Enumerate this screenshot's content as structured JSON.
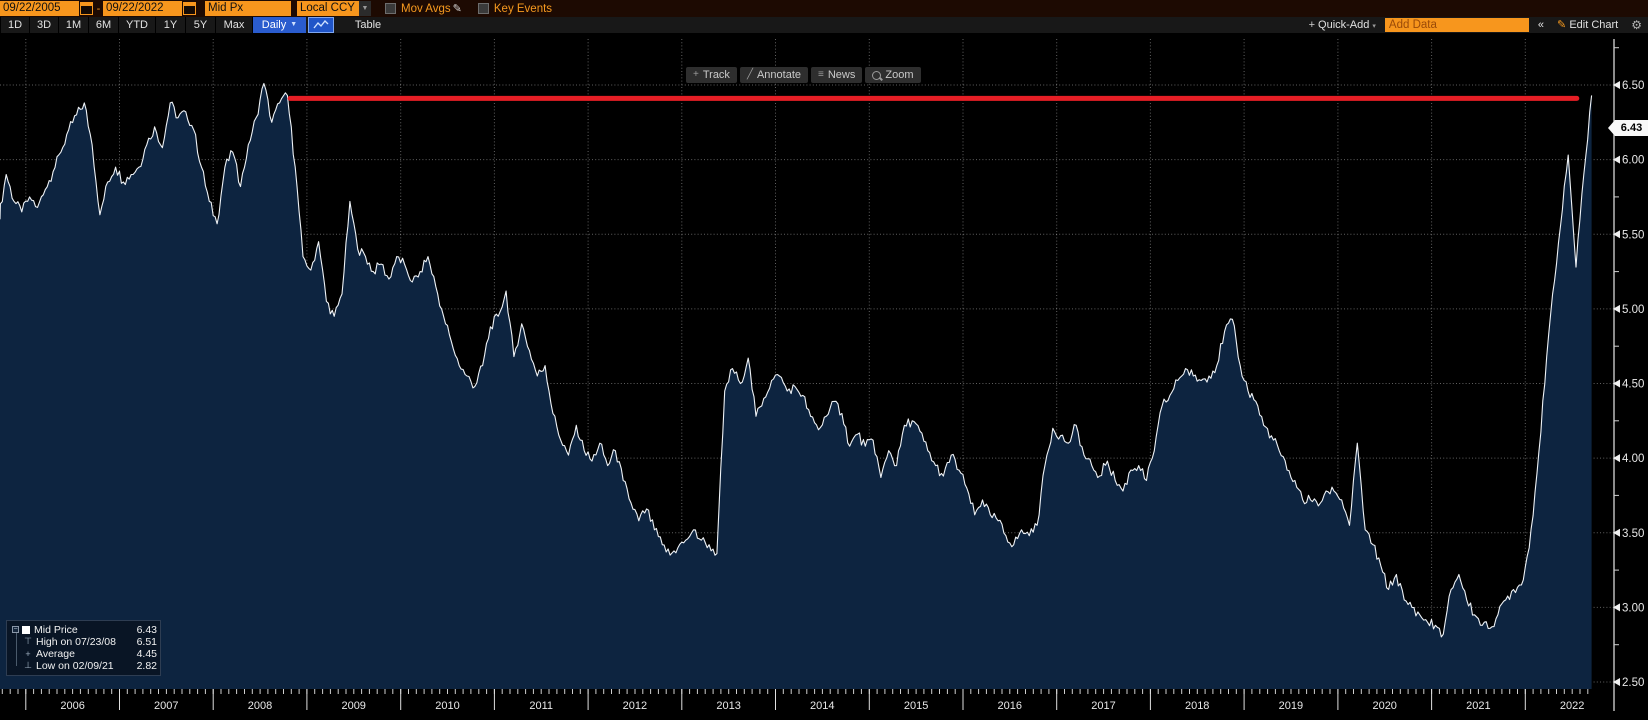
{
  "toolbar_fields": {
    "date_from": "09/22/2005",
    "date_separator": "-",
    "date_to": "09/22/2022",
    "price_field": "Mid Px",
    "currency_field": "Local CCY",
    "mov_avgs_label": "Mov Avgs",
    "key_events_label": "Key Events"
  },
  "nav_toolbar": {
    "ranges": [
      "1D",
      "3D",
      "1M",
      "6M",
      "YTD",
      "1Y",
      "5Y",
      "Max"
    ],
    "frequency": "Daily",
    "table_label": "Table",
    "quick_add_label": "Quick-Add",
    "add_data_placeholder": "Add Data",
    "collapse_label": "«",
    "edit_chart_label": "Edit Chart"
  },
  "chart_toolbar": {
    "track": "Track",
    "annotate": "Annotate",
    "news": "News",
    "zoom": "Zoom"
  },
  "icons": {
    "dropdown_arrow": "▼",
    "small_down_arrow": "▾",
    "plus": "+",
    "pencil": "✎",
    "double_chevron_left": "«",
    "gear": "⚙",
    "track_glyph": "+",
    "annotate_glyph": "╱",
    "news_glyph": "≡",
    "expander_minus": "−",
    "high_marker": "⊤",
    "average_marker": "+",
    "low_marker": "⊥"
  },
  "legend": {
    "rows": [
      {
        "label": "Mid Price",
        "value": "6.43"
      },
      {
        "label": "High on 07/23/08",
        "value": "6.51"
      },
      {
        "label": "Average",
        "value": "4.45"
      },
      {
        "label": "Low on 02/09/21",
        "value": "2.82"
      }
    ]
  },
  "last_price": "6.43",
  "colors": {
    "accent_amber": "#f7961d",
    "accent_blue": "#2a5cce",
    "annotation_red": "#e61e25",
    "area_fill": "#0d2440",
    "line": "#eef2f6",
    "axis_text": "#e8e8e8"
  },
  "chart_data": {
    "type": "area",
    "title": "",
    "ylabel": "",
    "xlabel": "",
    "x_start": "2005-09-22",
    "x_end": "2022-09-22",
    "frequency": "monthly",
    "ylim": [
      2.5,
      6.5
    ],
    "y_ticks": [
      6.5,
      6.0,
      5.5,
      5.0,
      4.5,
      4.0,
      3.5,
      3.0,
      2.5
    ],
    "y_minor_step": 0.25,
    "x_tick_years": [
      2006,
      2007,
      2008,
      2009,
      2010,
      2011,
      2012,
      2013,
      2014,
      2015,
      2016,
      2017,
      2018,
      2019,
      2020,
      2021,
      2022
    ],
    "grid": "dotted",
    "legend_position": "bottom-left",
    "last_price": 6.43,
    "stats": {
      "high": 6.51,
      "high_date": "07/23/08",
      "average": 4.45,
      "low": 2.82,
      "low_date": "02/09/21"
    },
    "annotation_line": {
      "type": "horizontal",
      "value": 6.41,
      "x_from_year": 2008.82,
      "x_to_year": 2022.55,
      "width": 5
    },
    "values": [
      5.6,
      5.9,
      5.72,
      5.65,
      5.75,
      5.68,
      5.8,
      5.92,
      6.05,
      6.2,
      6.3,
      6.38,
      6.1,
      5.63,
      5.85,
      5.95,
      5.85,
      5.9,
      5.95,
      6.1,
      6.22,
      6.08,
      6.38,
      6.28,
      6.32,
      6.2,
      5.95,
      5.72,
      5.57,
      5.95,
      6.05,
      5.82,
      6.1,
      6.28,
      6.51,
      6.25,
      6.38,
      6.43,
      5.95,
      5.35,
      5.26,
      5.45,
      5.05,
      4.95,
      5.1,
      5.72,
      5.4,
      5.35,
      5.25,
      5.3,
      5.2,
      5.35,
      5.3,
      5.18,
      5.25,
      5.35,
      5.15,
      4.95,
      4.78,
      4.62,
      4.55,
      4.48,
      4.62,
      4.88,
      4.95,
      5.12,
      4.68,
      4.9,
      4.72,
      4.55,
      4.62,
      4.3,
      4.12,
      4.02,
      4.22,
      4.05,
      3.98,
      4.1,
      3.95,
      4.05,
      3.85,
      3.7,
      3.58,
      3.66,
      3.52,
      3.42,
      3.35,
      3.4,
      3.45,
      3.52,
      3.45,
      3.42,
      3.36,
      4.45,
      4.6,
      4.5,
      4.67,
      4.28,
      4.4,
      4.52,
      4.55,
      4.45,
      4.48,
      4.42,
      4.28,
      4.19,
      4.28,
      4.38,
      4.3,
      4.08,
      4.16,
      4.08,
      4.12,
      3.87,
      4.05,
      3.95,
      4.22,
      4.25,
      4.18,
      4.05,
      3.95,
      3.88,
      4.02,
      3.92,
      3.8,
      3.62,
      3.72,
      3.62,
      3.58,
      3.48,
      3.42,
      3.52,
      3.48,
      3.55,
      3.95,
      4.2,
      4.15,
      4.1,
      4.22,
      4.02,
      3.95,
      3.88,
      3.98,
      3.85,
      3.78,
      3.92,
      3.95,
      3.85,
      4.05,
      4.35,
      4.42,
      4.52,
      4.6,
      4.55,
      4.52,
      4.55,
      4.62,
      4.85,
      4.93,
      4.62,
      4.45,
      4.38,
      4.22,
      4.15,
      4.05,
      3.92,
      3.85,
      3.72,
      3.72,
      3.68,
      3.78,
      3.78,
      3.72,
      3.55,
      4.1,
      3.52,
      3.42,
      3.28,
      3.12,
      3.22,
      3.05,
      3.0,
      2.95,
      2.9,
      2.88,
      2.82,
      3.12,
      3.22,
      3.05,
      2.95,
      2.88,
      2.86,
      2.95,
      3.05,
      3.12,
      3.15,
      3.4,
      3.9,
      4.5,
      5.1,
      5.55,
      6.03,
      5.28,
      5.9,
      6.43
    ]
  }
}
